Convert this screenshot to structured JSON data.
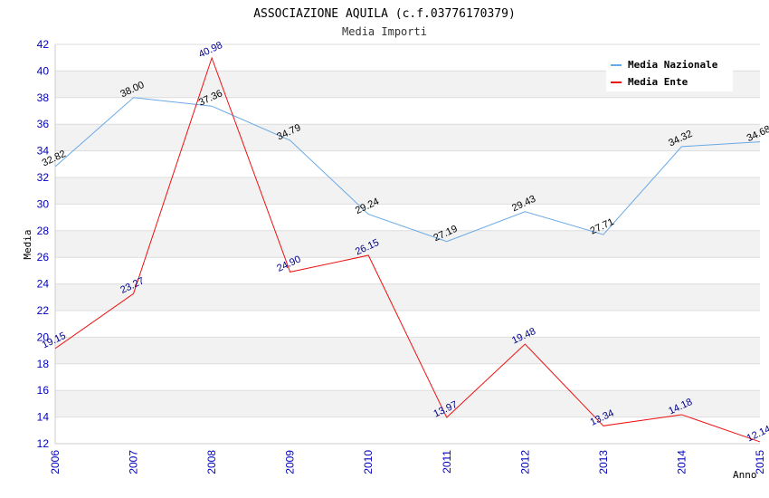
{
  "chart_data": {
    "type": "line",
    "title": "ASSOCIAZIONE AQUILA (c.f.03776170379)",
    "subtitle": "Media Importi",
    "xlabel": "Anno",
    "ylabel": "Media",
    "ylim": [
      12,
      42
    ],
    "yticks": [
      12,
      14,
      16,
      18,
      20,
      22,
      24,
      26,
      28,
      30,
      32,
      34,
      36,
      38,
      40,
      42
    ],
    "categories": [
      "2006",
      "2007",
      "2008",
      "2009",
      "2010",
      "2011",
      "2012",
      "2013",
      "2014",
      "2015"
    ],
    "grid": "horizontal alternating bands",
    "legend_position": "top-right",
    "series": [
      {
        "name": "Media Nazionale",
        "color": "#6aa9e6",
        "label_color": "#000000",
        "values": [
          32.82,
          38.0,
          37.36,
          34.79,
          29.24,
          27.19,
          29.43,
          27.71,
          34.32,
          34.68
        ],
        "labels": [
          "32.82",
          "38.00",
          "37.36",
          "34.79",
          "29.24",
          "27.19",
          "29.43",
          "27.71",
          "34.32",
          "34.68"
        ]
      },
      {
        "name": "Media Ente",
        "color": "#ee1111",
        "label_color": "#00008b",
        "values": [
          19.15,
          23.27,
          40.98,
          24.9,
          26.15,
          13.97,
          19.48,
          13.34,
          14.18,
          12.14
        ],
        "labels": [
          "19.15",
          "23.27",
          "40.98",
          "24.90",
          "26.15",
          "13.97",
          "19.48",
          "13.34",
          "14.18",
          "12.14"
        ]
      }
    ]
  }
}
